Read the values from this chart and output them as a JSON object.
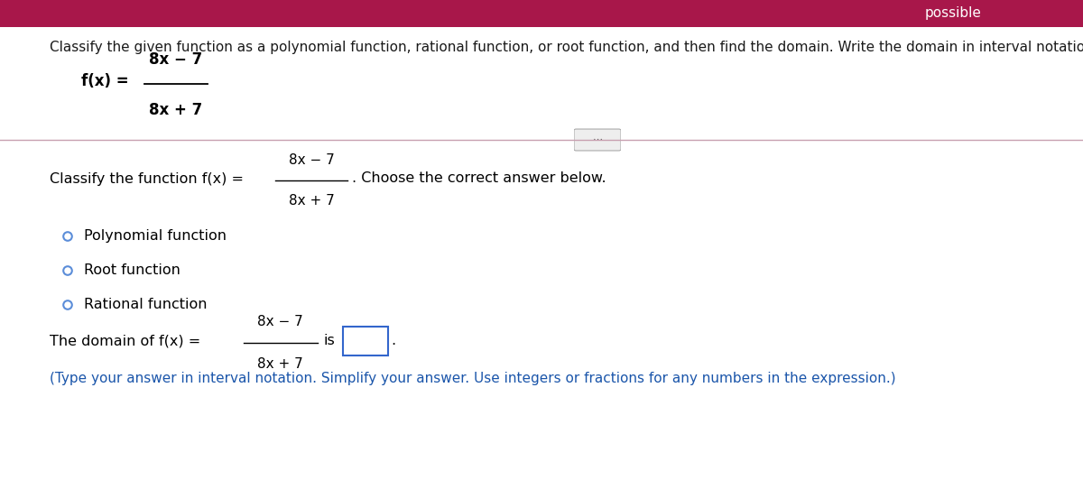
{
  "bg_color": "#ffffff",
  "header_bar_color": "#a8174a",
  "header_text": "possible",
  "header_text_color": "#ffffff",
  "instruction_color": "#1a1a1a",
  "divider_color": "#c8a0b0",
  "fraction_numerator": "8x − 7",
  "fraction_denominator": "8x + 7",
  "options": [
    "Polynomial function",
    "Root function",
    "Rational function"
  ],
  "radio_color": "#5b8dd9",
  "domain_hint": "(Type your answer in interval notation. Simplify your answer. Use integers or fractions for any numbers in the expression.)",
  "domain_hint_color": "#1a55aa",
  "box_edge_color": "#3366cc",
  "dots_button_color": "#eeeeee",
  "dots_button_border": "#aaaaaa"
}
